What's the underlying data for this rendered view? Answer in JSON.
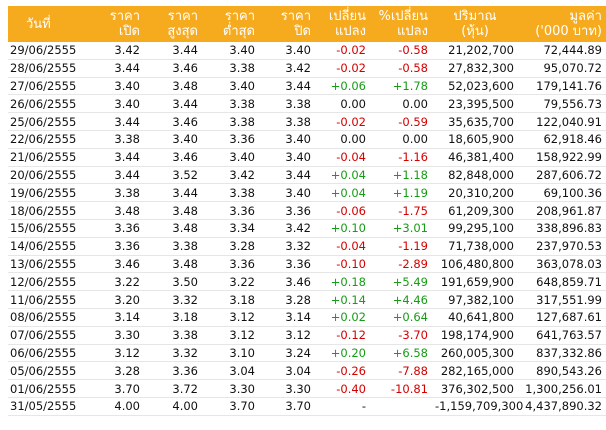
{
  "headers": {
    "date": "วันที่",
    "open": [
      "ราคา",
      "เปิด"
    ],
    "high": [
      "ราคา",
      "สูงสุด"
    ],
    "low": [
      "ราคา",
      "ต่ำสุด"
    ],
    "close": [
      "ราคา",
      "ปิด"
    ],
    "change": [
      "เปลี่ยน",
      "แปลง"
    ],
    "pct_change": [
      "%เปลี่ยน",
      "แปลง"
    ],
    "volume": [
      "ปริมาณ",
      "(หุ้น)"
    ],
    "value": [
      "มูลค่า",
      "('000 บาท)"
    ]
  },
  "rows": [
    {
      "date": "29/06/2555",
      "open": "3.42",
      "high": "3.44",
      "low": "3.40",
      "close": "3.40",
      "change": "-0.02",
      "pct": "-0.58",
      "volume": "21,202,700",
      "value": "72,444.89",
      "dir": "neg"
    },
    {
      "date": "28/06/2555",
      "open": "3.44",
      "high": "3.46",
      "low": "3.38",
      "close": "3.42",
      "change": "-0.02",
      "pct": "-0.58",
      "volume": "27,832,300",
      "value": "95,070.72",
      "dir": "neg"
    },
    {
      "date": "27/06/2555",
      "open": "3.40",
      "high": "3.48",
      "low": "3.40",
      "close": "3.44",
      "change": "+0.06",
      "pct": "+1.78",
      "volume": "52,023,600",
      "value": "179,141.76",
      "dir": "pos"
    },
    {
      "date": "26/06/2555",
      "open": "3.40",
      "high": "3.44",
      "low": "3.38",
      "close": "3.38",
      "change": "0.00",
      "pct": "0.00",
      "volume": "23,395,500",
      "value": "79,556.73",
      "dir": "neu"
    },
    {
      "date": "25/06/2555",
      "open": "3.44",
      "high": "3.46",
      "low": "3.38",
      "close": "3.38",
      "change": "-0.02",
      "pct": "-0.59",
      "volume": "35,635,700",
      "value": "122,040.91",
      "dir": "neg"
    },
    {
      "date": "22/06/2555",
      "open": "3.38",
      "high": "3.40",
      "low": "3.36",
      "close": "3.40",
      "change": "0.00",
      "pct": "0.00",
      "volume": "18,605,900",
      "value": "62,918.46",
      "dir": "neu"
    },
    {
      "date": "21/06/2555",
      "open": "3.44",
      "high": "3.46",
      "low": "3.40",
      "close": "3.40",
      "change": "-0.04",
      "pct": "-1.16",
      "volume": "46,381,400",
      "value": "158,922.99",
      "dir": "neg"
    },
    {
      "date": "20/06/2555",
      "open": "3.44",
      "high": "3.52",
      "low": "3.42",
      "close": "3.44",
      "change": "+0.04",
      "pct": "+1.18",
      "volume": "82,848,000",
      "value": "287,606.72",
      "dir": "pos"
    },
    {
      "date": "19/06/2555",
      "open": "3.38",
      "high": "3.44",
      "low": "3.38",
      "close": "3.40",
      "change": "+0.04",
      "pct": "+1.19",
      "volume": "20,310,200",
      "value": "69,100.36",
      "dir": "pos"
    },
    {
      "date": "18/06/2555",
      "open": "3.48",
      "high": "3.48",
      "low": "3.36",
      "close": "3.36",
      "change": "-0.06",
      "pct": "-1.75",
      "volume": "61,209,300",
      "value": "208,961.87",
      "dir": "neg"
    },
    {
      "date": "15/06/2555",
      "open": "3.36",
      "high": "3.48",
      "low": "3.34",
      "close": "3.42",
      "change": "+0.10",
      "pct": "+3.01",
      "volume": "99,295,100",
      "value": "338,896.83",
      "dir": "pos"
    },
    {
      "date": "14/06/2555",
      "open": "3.36",
      "high": "3.38",
      "low": "3.28",
      "close": "3.32",
      "change": "-0.04",
      "pct": "-1.19",
      "volume": "71,738,000",
      "value": "237,970.53",
      "dir": "neg"
    },
    {
      "date": "13/06/2555",
      "open": "3.46",
      "high": "3.48",
      "low": "3.36",
      "close": "3.36",
      "change": "-0.10",
      "pct": "-2.89",
      "volume": "106,480,800",
      "value": "363,078.03",
      "dir": "neg"
    },
    {
      "date": "12/06/2555",
      "open": "3.22",
      "high": "3.50",
      "low": "3.22",
      "close": "3.46",
      "change": "+0.18",
      "pct": "+5.49",
      "volume": "191,659,900",
      "value": "648,859.71",
      "dir": "pos"
    },
    {
      "date": "11/06/2555",
      "open": "3.20",
      "high": "3.32",
      "low": "3.18",
      "close": "3.28",
      "change": "+0.14",
      "pct": "+4.46",
      "volume": "97,382,100",
      "value": "317,551.99",
      "dir": "pos"
    },
    {
      "date": "08/06/2555",
      "open": "3.14",
      "high": "3.18",
      "low": "3.12",
      "close": "3.14",
      "change": "+0.02",
      "pct": "+0.64",
      "volume": "40,641,800",
      "value": "127,687.61",
      "dir": "pos"
    },
    {
      "date": "07/06/2555",
      "open": "3.30",
      "high": "3.38",
      "low": "3.12",
      "close": "3.12",
      "change": "-0.12",
      "pct": "-3.70",
      "volume": "198,174,900",
      "value": "641,763.57",
      "dir": "neg"
    },
    {
      "date": "06/06/2555",
      "open": "3.12",
      "high": "3.32",
      "low": "3.10",
      "close": "3.24",
      "change": "+0.20",
      "pct": "+6.58",
      "volume": "260,005,300",
      "value": "837,332.86",
      "dir": "pos"
    },
    {
      "date": "05/06/2555",
      "open": "3.28",
      "high": "3.36",
      "low": "3.04",
      "close": "3.04",
      "change": "-0.26",
      "pct": "-7.88",
      "volume": "282,165,000",
      "value": "890,543.26",
      "dir": "neg"
    },
    {
      "date": "01/06/2555",
      "open": "3.70",
      "high": "3.72",
      "low": "3.30",
      "close": "3.30",
      "change": "-0.40",
      "pct": "-10.81",
      "volume": "376,302,500",
      "value": "1,300,256.01",
      "dir": "neg"
    },
    {
      "date": "31/05/2555",
      "open": "4.00",
      "high": "4.00",
      "low": "3.70",
      "close": "3.70",
      "change": "-",
      "pct": "",
      "volume": "-1,159,709,300",
      "value": "4,437,890.32",
      "dir": "neu"
    }
  ],
  "colors": {
    "header_bg": "#f6aa1e",
    "header_text": "#ffffff",
    "positive": "#179c17",
    "negative": "#d40000"
  }
}
